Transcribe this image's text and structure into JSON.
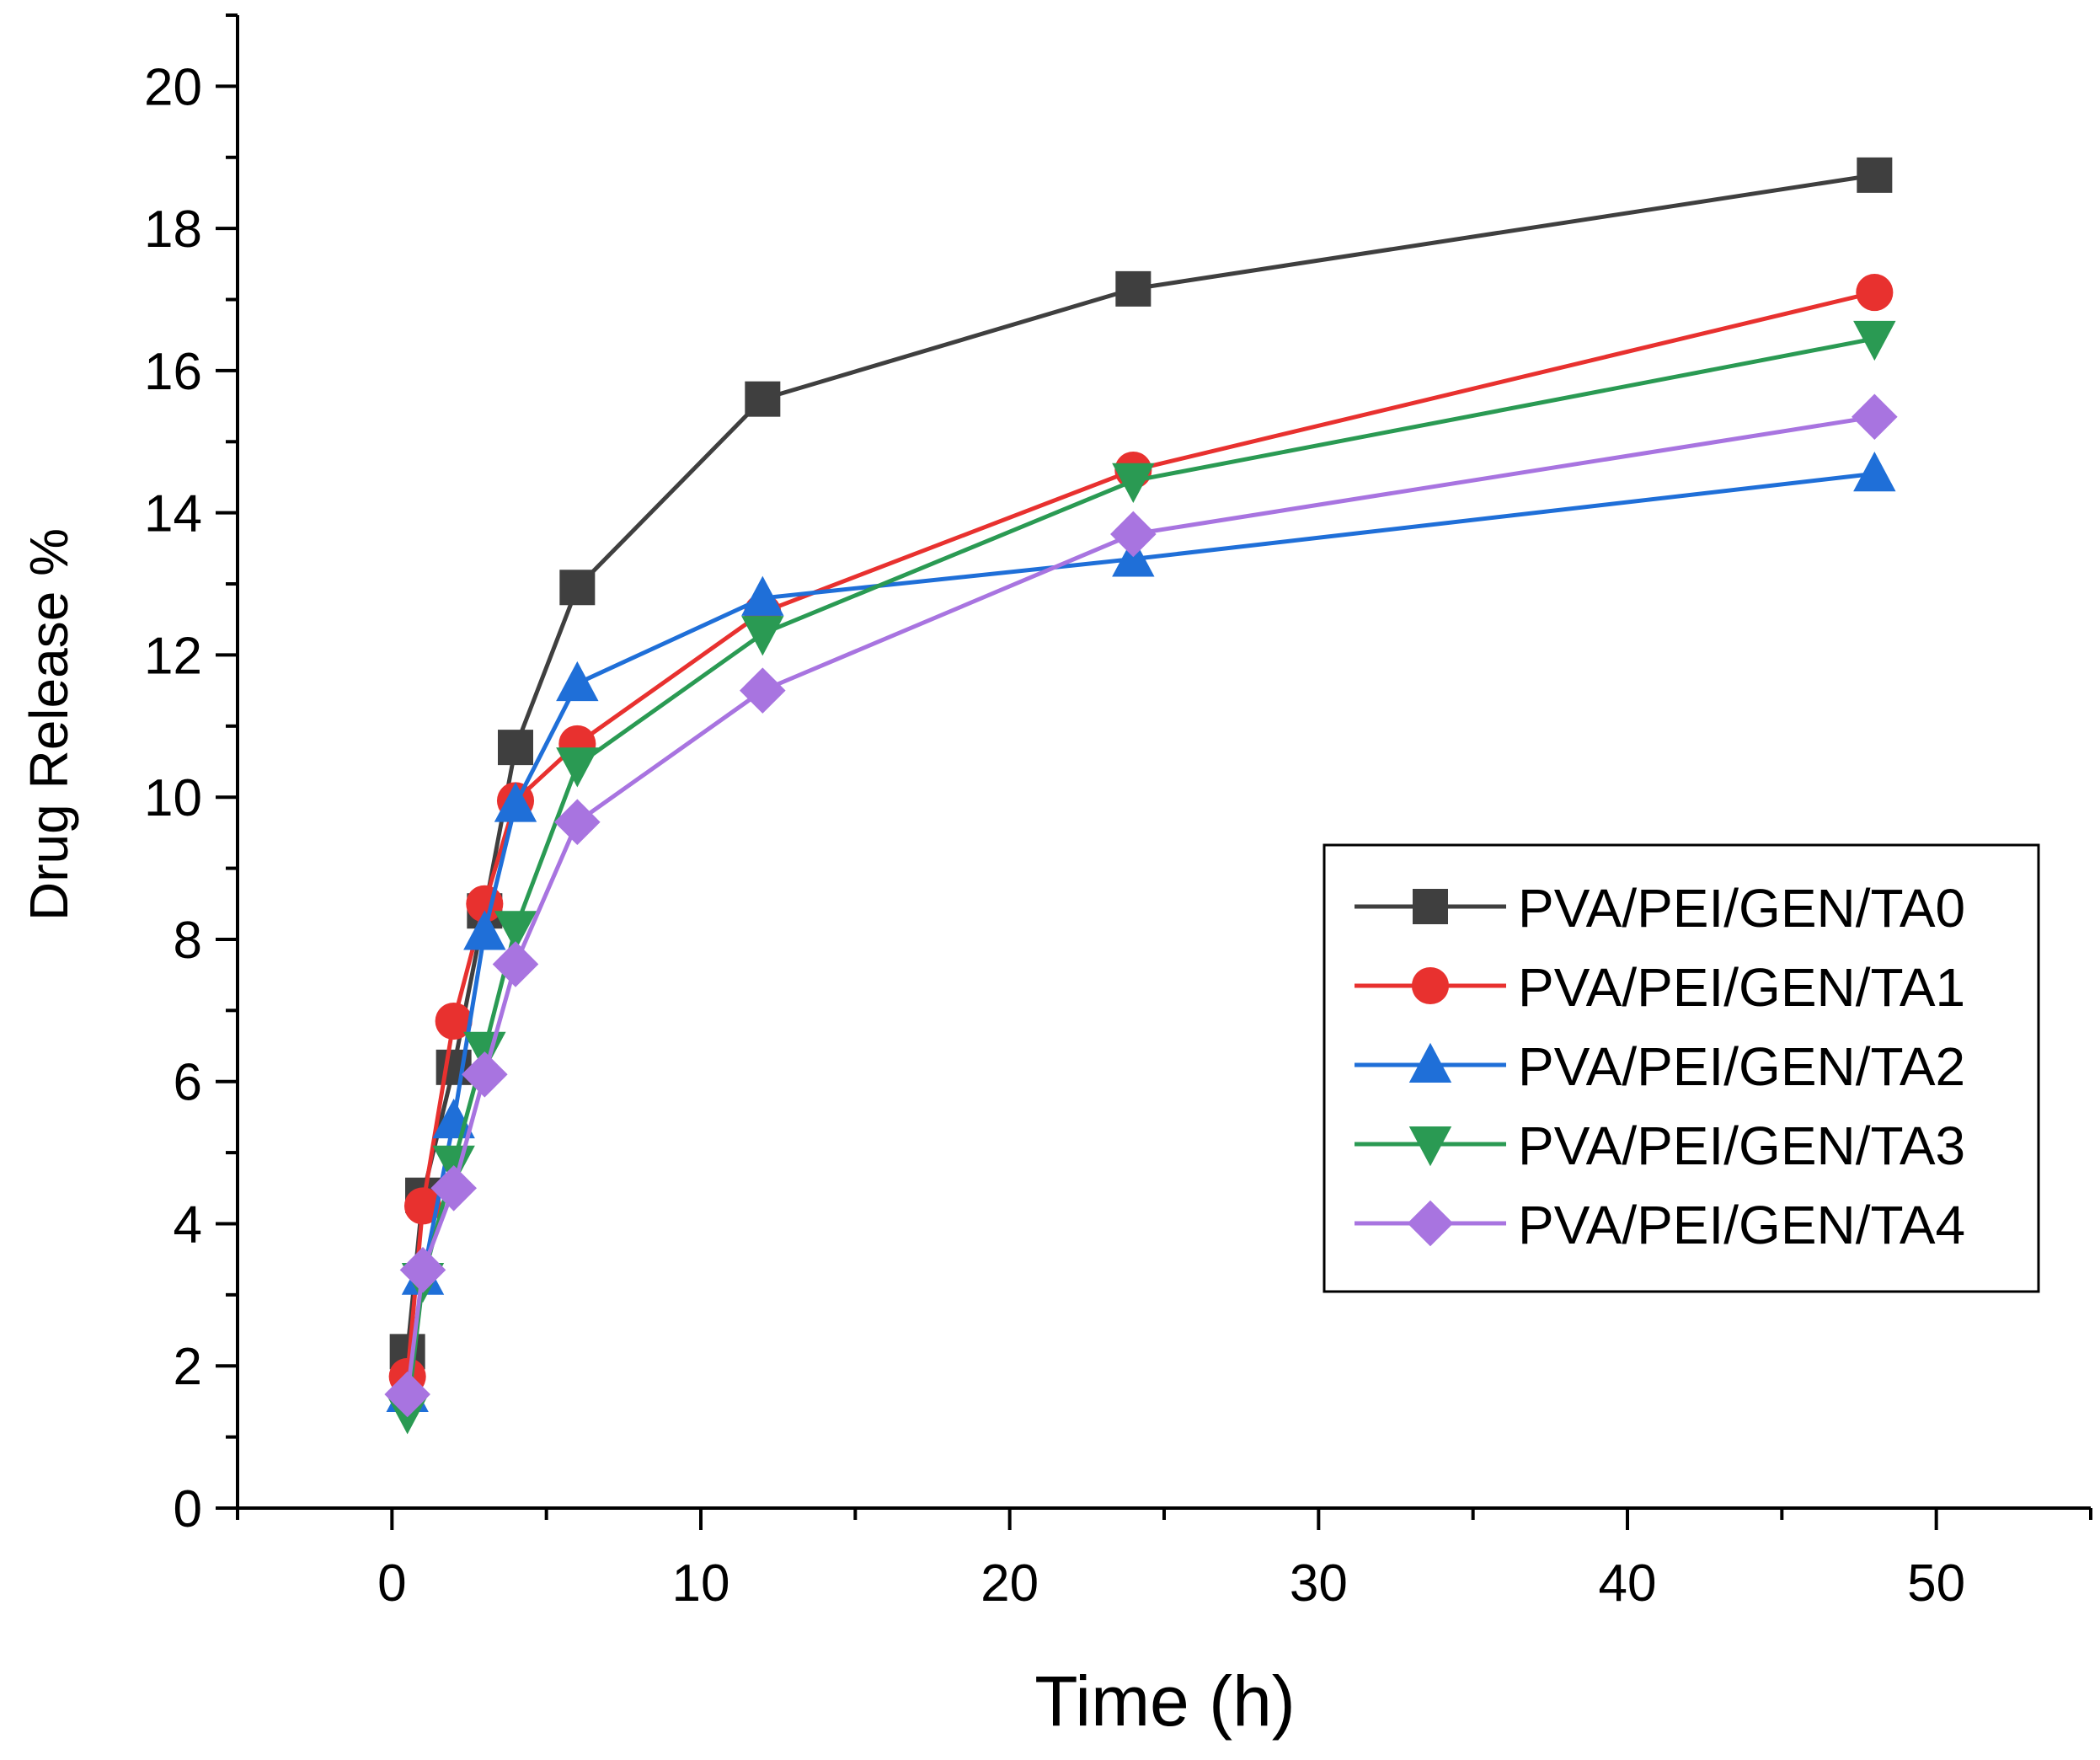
{
  "chart_data": {
    "type": "line",
    "xlabel": "Time (h)",
    "ylabel": "Drug Release %",
    "xlim": [
      -5,
      55
    ],
    "ylim": [
      0,
      21
    ],
    "x_ticks": [
      0,
      10,
      20,
      30,
      40,
      50
    ],
    "y_ticks": [
      0,
      2,
      4,
      6,
      8,
      10,
      12,
      14,
      16,
      18,
      20
    ],
    "x": [
      0.5,
      1,
      2,
      3,
      4,
      6,
      12,
      24,
      48
    ],
    "legend_position": "center-right",
    "grid": false,
    "series": [
      {
        "name": "PVA/PEI/GEN/TA0",
        "color": "#3f3f3f",
        "marker": "square",
        "values": [
          2.2,
          4.4,
          6.2,
          8.4,
          10.7,
          12.95,
          15.6,
          17.15,
          18.75
        ]
      },
      {
        "name": "PVA/PEI/GEN/TA1",
        "color": "#e8312f",
        "marker": "circle",
        "values": [
          1.85,
          4.25,
          6.85,
          8.5,
          9.95,
          10.75,
          12.6,
          14.6,
          17.1
        ]
      },
      {
        "name": "PVA/PEI/GEN/TA2",
        "color": "#1f6fd8",
        "marker": "triangle-up",
        "values": [
          1.6,
          3.25,
          5.45,
          8.1,
          9.9,
          11.6,
          12.8,
          13.35,
          14.55
        ]
      },
      {
        "name": "PVA/PEI/GEN/TA3",
        "color": "#2a9a53",
        "marker": "triangle-down",
        "values": [
          1.35,
          3.2,
          4.85,
          6.45,
          8.15,
          10.45,
          12.3,
          14.45,
          16.45
        ]
      },
      {
        "name": "PVA/PEI/GEN/TA4",
        "color": "#a874e0",
        "marker": "diamond",
        "values": [
          1.6,
          3.35,
          4.5,
          6.1,
          7.65,
          9.65,
          11.5,
          13.7,
          15.35
        ]
      }
    ]
  }
}
